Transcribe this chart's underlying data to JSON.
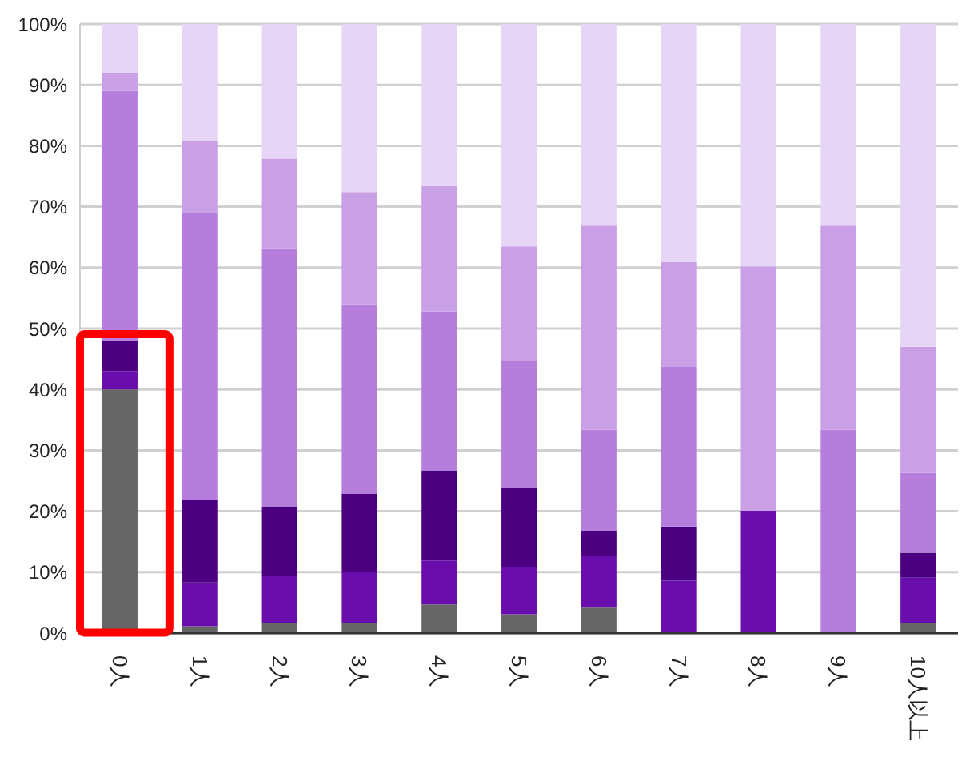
{
  "chart_data": {
    "type": "bar",
    "stacked": true,
    "categories": [
      "0人",
      "1人",
      "2人",
      "3人",
      "4人",
      "5人",
      "6人",
      "7人",
      "8人",
      "9人",
      "10人以上"
    ],
    "series": [
      {
        "color": "#666666",
        "values": [
          40,
          1.1,
          1.7,
          1.7,
          4.7,
          3.1,
          4.3,
          0,
          0,
          0,
          1.7
        ]
      },
      {
        "color": "#6a0dad",
        "values": [
          3,
          7.2,
          7.7,
          8.4,
          7.2,
          7.8,
          8.4,
          8.6,
          20.1,
          0,
          7.4
        ]
      },
      {
        "color": "#4b0082",
        "values": [
          5,
          13.6,
          11.4,
          12.8,
          14.8,
          12.9,
          4.1,
          8.9,
          0,
          0,
          4.1
        ]
      },
      {
        "color": "#b57edc",
        "values": [
          41,
          47.1,
          42.4,
          31.1,
          26.1,
          20.9,
          16.6,
          26.2,
          0,
          33.4,
          13.1
        ]
      },
      {
        "color": "#c9a0e6",
        "values": [
          3,
          11.8,
          14.7,
          18.4,
          20.6,
          18.8,
          33.5,
          17.2,
          40.1,
          33.5,
          20.7
        ]
      },
      {
        "color": "#e6d5f5",
        "values": [
          8,
          19.2,
          22.1,
          27.6,
          26.6,
          36.5,
          33.1,
          39.1,
          39.8,
          33.1,
          53
        ]
      }
    ],
    "ylim": [
      0,
      100
    ],
    "yticks": [
      {
        "value": 0,
        "label": "0%"
      },
      {
        "value": 10,
        "label": "10%"
      },
      {
        "value": 20,
        "label": "20%"
      },
      {
        "value": 30,
        "label": "30%"
      },
      {
        "value": 40,
        "label": "40%"
      },
      {
        "value": 50,
        "label": "50%"
      },
      {
        "value": 60,
        "label": "60%"
      },
      {
        "value": 70,
        "label": "70%"
      },
      {
        "value": 80,
        "label": "80%"
      },
      {
        "value": 90,
        "label": "90%"
      },
      {
        "value": 100,
        "label": "100%"
      }
    ],
    "grid": "y",
    "legend": false
  }
}
